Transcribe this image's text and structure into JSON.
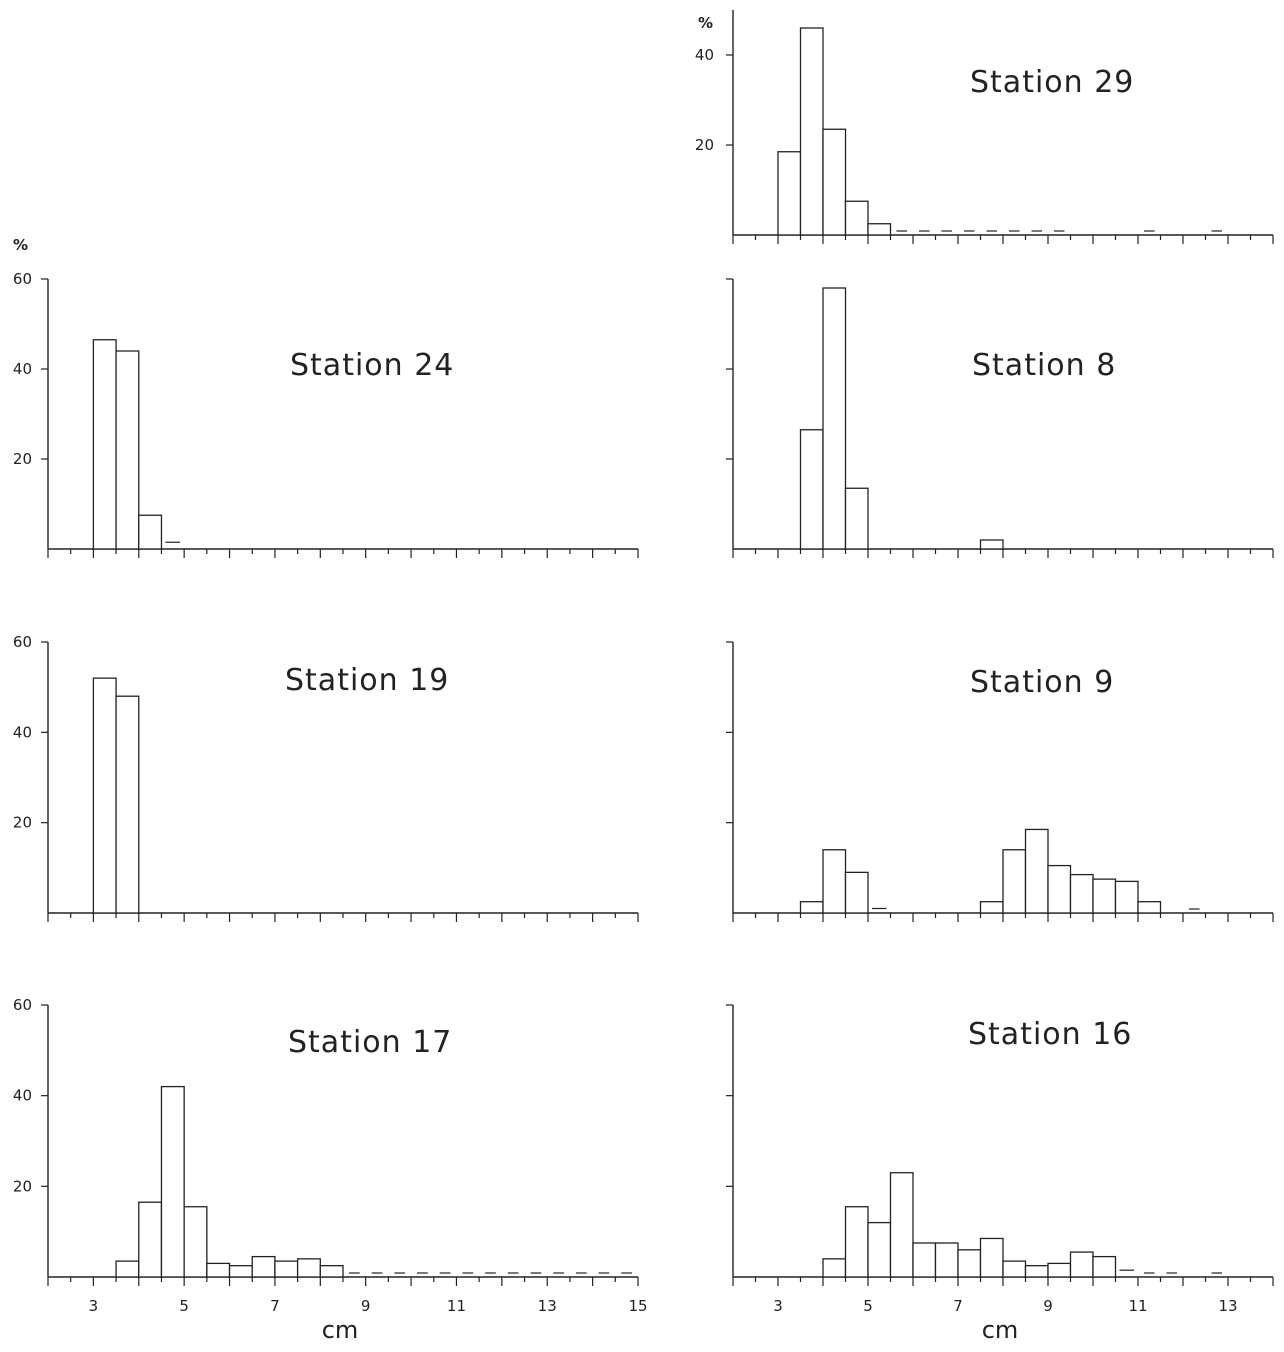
{
  "chart_data": [
    {
      "type": "bar",
      "title": "Station 24",
      "ylabel": "%",
      "xlabel": "",
      "xlim": [
        2,
        15
      ],
      "ylim": [
        0,
        60
      ],
      "bin_width": 0.5,
      "yticks": [
        20,
        40,
        60
      ],
      "ytick_labels": [
        "20",
        "40",
        "60"
      ],
      "xticks": [],
      "x_start": [
        3.0,
        3.5,
        4.0,
        4.5
      ],
      "values": [
        46.5,
        44,
        7.5,
        1.5
      ],
      "trace_marks_x": []
    },
    {
      "type": "bar",
      "title": "Station 19",
      "ylabel": "",
      "xlabel": "",
      "xlim": [
        2,
        15
      ],
      "ylim": [
        0,
        60
      ],
      "bin_width": 0.5,
      "yticks": [
        20,
        40,
        60
      ],
      "ytick_labels": [
        "20",
        "40",
        "60"
      ],
      "xticks": [],
      "x_start": [
        3.0,
        3.5
      ],
      "values": [
        52,
        48
      ],
      "trace_marks_x": []
    },
    {
      "type": "bar",
      "title": "Station 17",
      "ylabel": "",
      "xlabel": "cm",
      "xlim": [
        2,
        15
      ],
      "ylim": [
        0,
        60
      ],
      "bin_width": 0.5,
      "yticks": [
        20,
        40,
        60
      ],
      "ytick_labels": [
        "20",
        "40",
        "60"
      ],
      "xticks": [
        "3",
        "5",
        "7",
        "9",
        "11",
        "13",
        "15"
      ],
      "x_start": [
        3.5,
        4.0,
        4.5,
        5.0,
        5.5,
        6.0,
        6.5,
        7.0,
        7.5,
        8.0
      ],
      "values": [
        3.5,
        16.5,
        42,
        15.5,
        3,
        2.5,
        4.5,
        3.5,
        4,
        2.5
      ],
      "trace_marks_x": [
        8.5,
        9.0,
        9.5,
        10.0,
        10.5,
        11.0,
        11.5,
        12.0,
        12.5,
        13.0,
        13.5,
        14.0,
        14.5
      ]
    },
    {
      "type": "bar",
      "title": "Station 29",
      "ylabel": "%",
      "xlabel": "",
      "xlim": [
        2,
        14
      ],
      "ylim": [
        0,
        50
      ],
      "bin_width": 0.5,
      "yticks": [
        20,
        40
      ],
      "ytick_labels": [
        "20",
        "40"
      ],
      "xticks": [],
      "x_start": [
        3.0,
        3.5,
        4.0,
        4.5,
        5.0
      ],
      "values": [
        18.5,
        46,
        23.5,
        7.5,
        2.5
      ],
      "trace_marks_x": [
        5.5,
        6.0,
        6.5,
        7.0,
        7.5,
        8.0,
        8.5,
        9.0,
        11.0,
        12.5
      ]
    },
    {
      "type": "bar",
      "title": "Station 8",
      "ylabel": "",
      "xlabel": "",
      "xlim": [
        2,
        14
      ],
      "ylim": [
        0,
        60
      ],
      "bin_width": 0.5,
      "yticks": [
        20,
        40,
        60
      ],
      "ytick_labels": [],
      "xticks": [],
      "x_start": [
        3.5,
        4.0,
        4.5,
        7.5
      ],
      "values": [
        26.5,
        58,
        13.5,
        2
      ],
      "trace_marks_x": []
    },
    {
      "type": "bar",
      "title": "Station 9",
      "ylabel": "",
      "xlabel": "",
      "xlim": [
        2,
        14
      ],
      "ylim": [
        0,
        60
      ],
      "bin_width": 0.5,
      "yticks": [
        20,
        40,
        60
      ],
      "ytick_labels": [],
      "xticks": [],
      "x_start": [
        3.5,
        4.0,
        4.5,
        5.0,
        7.5,
        8.0,
        8.5,
        9.0,
        9.5,
        10.0,
        10.5,
        11.0
      ],
      "values": [
        2.5,
        14,
        9,
        1,
        2.5,
        14,
        18.5,
        10.5,
        8.5,
        7.5,
        7,
        2.5
      ],
      "trace_marks_x": [
        12.0
      ]
    },
    {
      "type": "bar",
      "title": "Station 16",
      "ylabel": "",
      "xlabel": "cm",
      "xlim": [
        2,
        14
      ],
      "ylim": [
        0,
        60
      ],
      "bin_width": 0.5,
      "yticks": [
        20,
        40,
        60
      ],
      "ytick_labels": [],
      "xticks": [
        "3",
        "5",
        "7",
        "9",
        "11",
        "13"
      ],
      "x_start": [
        4.0,
        4.5,
        5.0,
        5.5,
        6.0,
        6.5,
        7.0,
        7.5,
        8.0,
        8.5,
        9.0,
        9.5,
        10.0,
        10.5
      ],
      "values": [
        4,
        15.5,
        12,
        23,
        7.5,
        7.5,
        6,
        8.5,
        3.5,
        2.5,
        3,
        5.5,
        4.5,
        1.5
      ],
      "trace_marks_x": [
        11.0,
        11.5,
        12.5
      ]
    }
  ]
}
